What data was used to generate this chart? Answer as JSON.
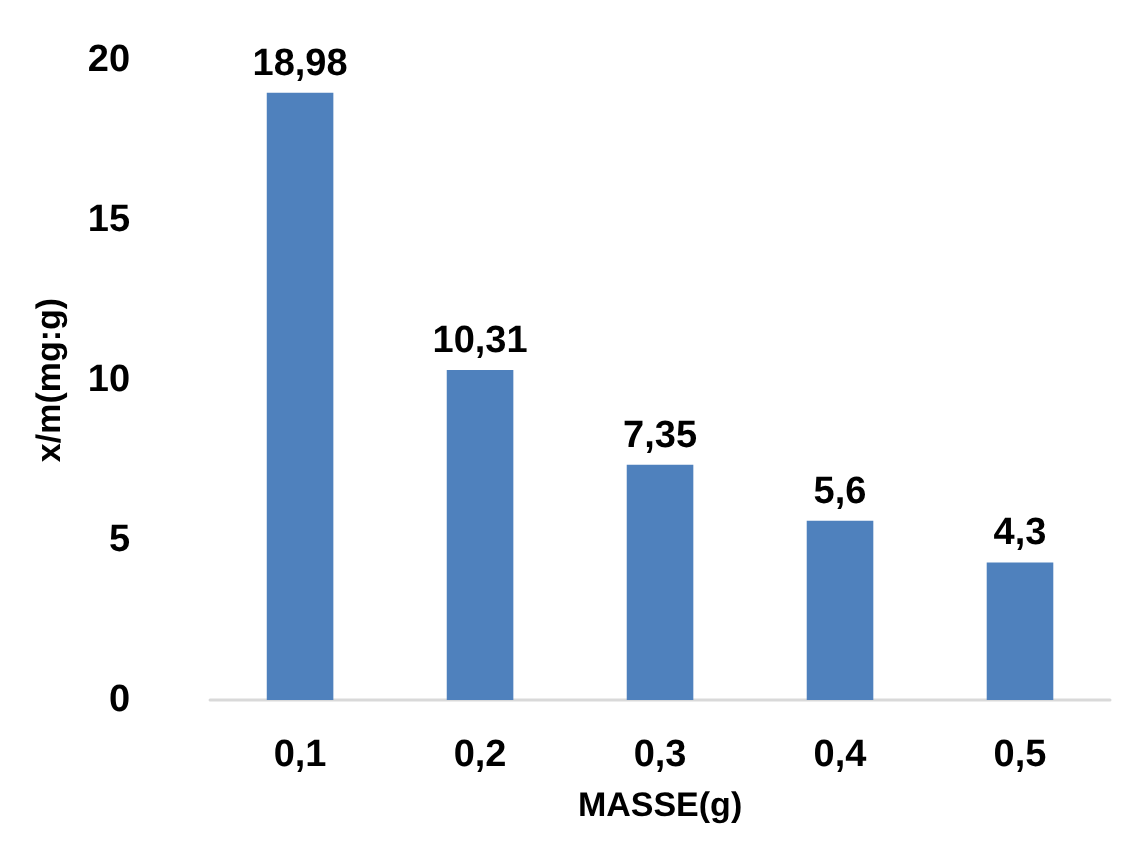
{
  "chart_data": {
    "type": "bar",
    "xlabel": "MASSE(g)",
    "ylabel": "x/m(mg:g)",
    "categories": [
      "0,1",
      "0,2",
      "0,3",
      "0,4",
      "0,5"
    ],
    "values": [
      18.98,
      10.31,
      7.35,
      5.6,
      4.3
    ],
    "value_labels": [
      "18,98",
      "10,31",
      "7,35",
      "5,6",
      "4,3"
    ],
    "color": "#4f81bd",
    "ylim": [
      0,
      20
    ],
    "yticks": [
      0,
      5,
      10,
      15,
      20
    ],
    "grid": false
  }
}
